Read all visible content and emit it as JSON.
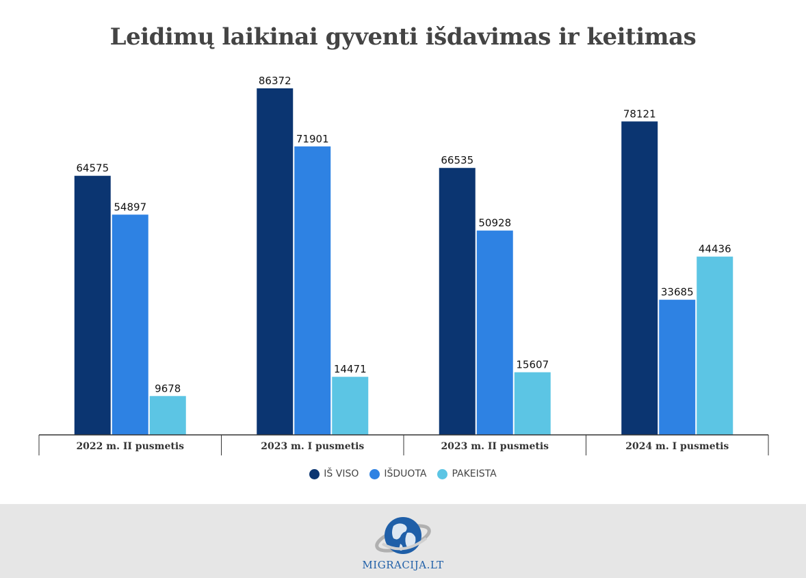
{
  "chart_data": {
    "type": "bar",
    "title": "Leidimų laikinai gyventi išdavimas ir keitimas",
    "categories": [
      "2022 m. II pusmetis",
      "2023 m. I pusmetis",
      "2023 m. II pusmetis",
      "2024 m. I pusmetis"
    ],
    "series": [
      {
        "name": "IŠ VISO",
        "color": "#0b3571",
        "values": [
          64575,
          86372,
          66535,
          78121
        ]
      },
      {
        "name": "IŠDUOTA",
        "color": "#2e82e3",
        "values": [
          54897,
          71901,
          50928,
          33685
        ]
      },
      {
        "name": "PAKEISTA",
        "color": "#5cc5e4",
        "values": [
          9678,
          14471,
          15607,
          44436
        ]
      }
    ],
    "ylim": [
      0,
      86372
    ],
    "grid": false,
    "legend_position": "bottom"
  },
  "footer": {
    "logo_text": "MIGRACIJA.LT",
    "logo_icon": "globe-icon",
    "background": "#e6e6e6"
  }
}
